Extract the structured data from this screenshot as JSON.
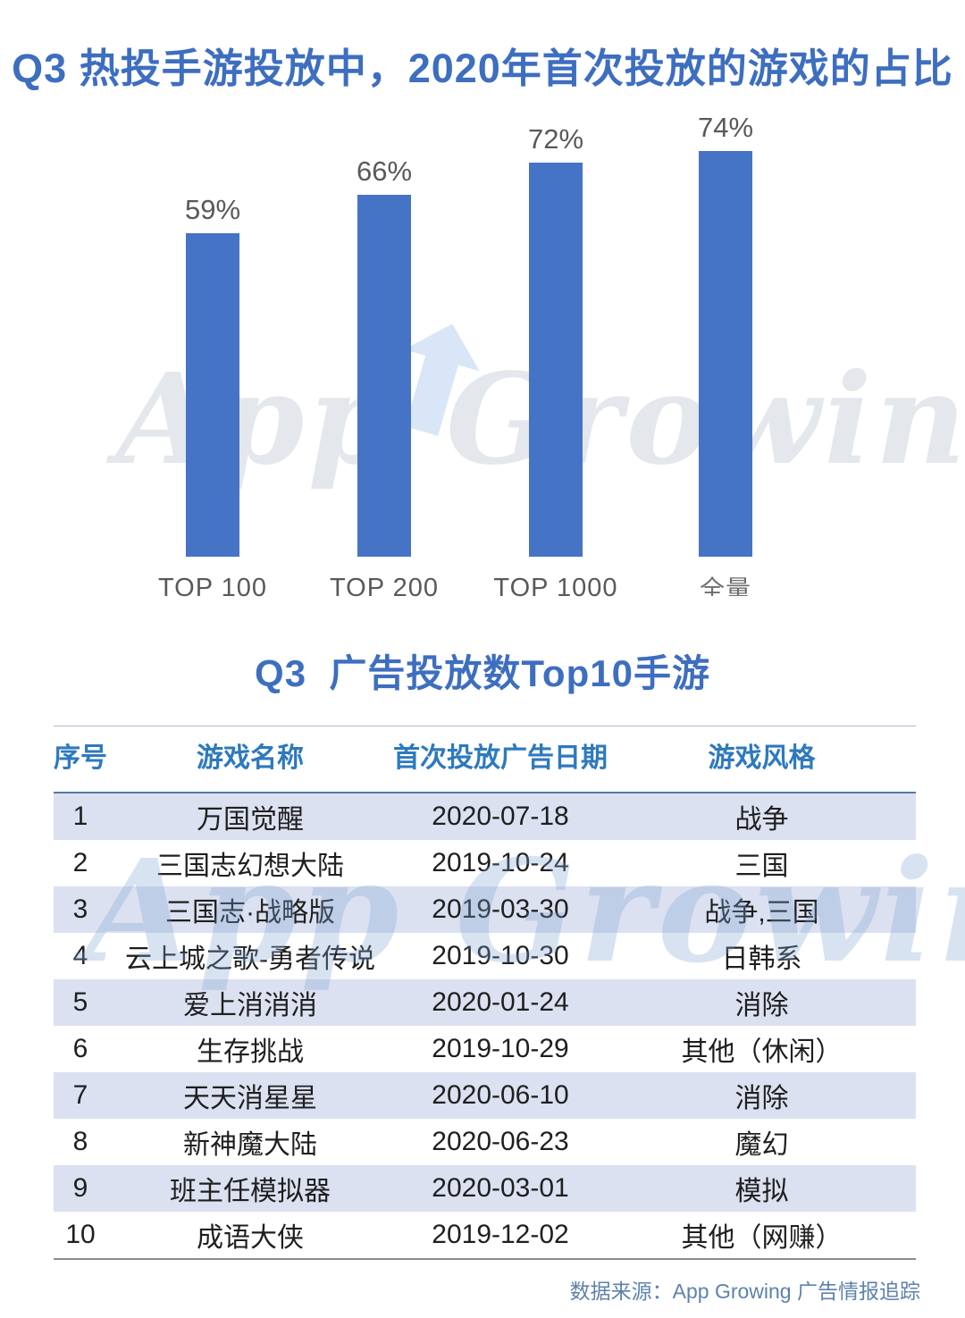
{
  "page": {
    "watermark_text": "App Growing"
  },
  "chart_data": {
    "type": "bar",
    "title": "Q3 热投手游投放中，2020年首次投放的游戏的占比",
    "categories": [
      "TOP 100",
      "TOP 200",
      "TOP 1000",
      "全量"
    ],
    "values": [
      59,
      66,
      72,
      74
    ],
    "data_labels": [
      "59%",
      "66%",
      "72%",
      "74%"
    ],
    "xlabel": "",
    "ylabel": "",
    "ylim": [
      0,
      100
    ],
    "grid": false,
    "legend": false,
    "bar_color": "#4574C6",
    "data_label_color": "#595959"
  },
  "table": {
    "title": "Q3  广告投放数Top10手游",
    "columns": [
      "序号",
      "游戏名称",
      "首次投放广告日期",
      "游戏风格"
    ],
    "rows": [
      {
        "no": "1",
        "name": "万国觉醒",
        "date": "2020-07-18",
        "style": "战争"
      },
      {
        "no": "2",
        "name": "三国志幻想大陆",
        "date": "2019-10-24",
        "style": "三国"
      },
      {
        "no": "3",
        "name": "三国志·战略版",
        "date": "2019-03-30",
        "style": "战争,三国"
      },
      {
        "no": "4",
        "name": "云上城之歌-勇者传说",
        "date": "2019-10-30",
        "style": "日韩系"
      },
      {
        "no": "5",
        "name": "爱上消消消",
        "date": "2020-01-24",
        "style": "消除"
      },
      {
        "no": "6",
        "name": "生存挑战",
        "date": "2019-10-29",
        "style": "其他（休闲）"
      },
      {
        "no": "7",
        "name": "天天消星星",
        "date": "2020-06-10",
        "style": "消除"
      },
      {
        "no": "8",
        "name": "新神魔大陆",
        "date": "2020-06-23",
        "style": "魔幻"
      },
      {
        "no": "9",
        "name": "班主任模拟器",
        "date": "2020-03-01",
        "style": "模拟"
      },
      {
        "no": "10",
        "name": "成语大侠",
        "date": "2019-12-02",
        "style": "其他（网赚）"
      }
    ],
    "header_text_color": "#2E79BE",
    "alt_row_bg": "#DBE1F0"
  },
  "footer": {
    "source_text": "数据来源：App Growing 广告情报追踪"
  },
  "colors": {
    "title_blue": "#3D6EC0",
    "bar_blue": "#4574C6",
    "header_blue": "#2E79BE",
    "alt_row_bg": "#DBE1F0",
    "footer_blue": "#5E82AC"
  }
}
